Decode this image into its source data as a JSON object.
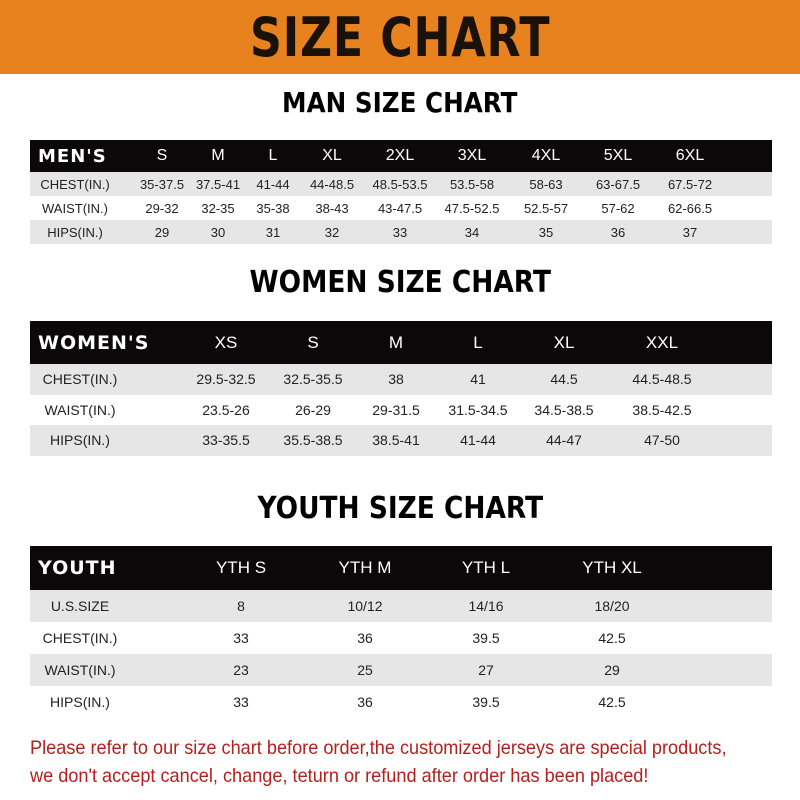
{
  "banner": {
    "title": "SIZE CHART",
    "color": "#e8821e"
  },
  "men": {
    "title": "MAN SIZE CHART",
    "header": [
      "MEN'S",
      "S",
      "M",
      "L",
      "XL",
      "2XL",
      "3XL",
      "4XL",
      "5XL",
      "6XL"
    ],
    "rows": [
      [
        "CHEST(IN.)",
        "35-37.5",
        "37.5-41",
        "41-44",
        "44-48.5",
        "48.5-53.5",
        "53.5-58",
        "58-63",
        "63-67.5",
        "67.5-72"
      ],
      [
        "WAIST(IN.)",
        "29-32",
        "32-35",
        "35-38",
        "38-43",
        "43-47.5",
        "47.5-52.5",
        "52.5-57",
        "57-62",
        "62-66.5"
      ],
      [
        "HIPS(IN.)",
        "29",
        "30",
        "31",
        "32",
        "33",
        "34",
        "35",
        "36",
        "37"
      ]
    ]
  },
  "women": {
    "title": "WOMEN SIZE CHART",
    "header": [
      "WOMEN'S",
      "XS",
      "S",
      "M",
      "L",
      "XL",
      "XXL"
    ],
    "rows": [
      [
        "CHEST(IN.)",
        "29.5-32.5",
        "32.5-35.5",
        "38",
        "41",
        "44.5",
        "44.5-48.5"
      ],
      [
        "WAIST(IN.)",
        "23.5-26",
        "26-29",
        "29-31.5",
        "31.5-34.5",
        "34.5-38.5",
        "38.5-42.5"
      ],
      [
        "HIPS(IN.)",
        "33-35.5",
        "35.5-38.5",
        "38.5-41",
        "41-44",
        "44-47",
        "47-50"
      ]
    ]
  },
  "youth": {
    "title": "YOUTH SIZE CHART",
    "header": [
      "YOUTH",
      "YTH S",
      "YTH M",
      "YTH L",
      "YTH XL"
    ],
    "rows": [
      [
        "U.S.SIZE",
        "8",
        "10/12",
        "14/16",
        "18/20"
      ],
      [
        "CHEST(IN.)",
        "33",
        "36",
        "39.5",
        "42.5"
      ],
      [
        "WAIST(IN.)",
        "23",
        "25",
        "27",
        "29"
      ],
      [
        "HIPS(IN.)",
        "33",
        "36",
        "39.5",
        "42.5"
      ]
    ]
  },
  "footer": {
    "line1": "Please refer to our size chart before order,the customized jerseys are special products,",
    "line2": "we don't accept cancel, change, teturn or refund after order has been placed!",
    "color": "#b3201e"
  }
}
